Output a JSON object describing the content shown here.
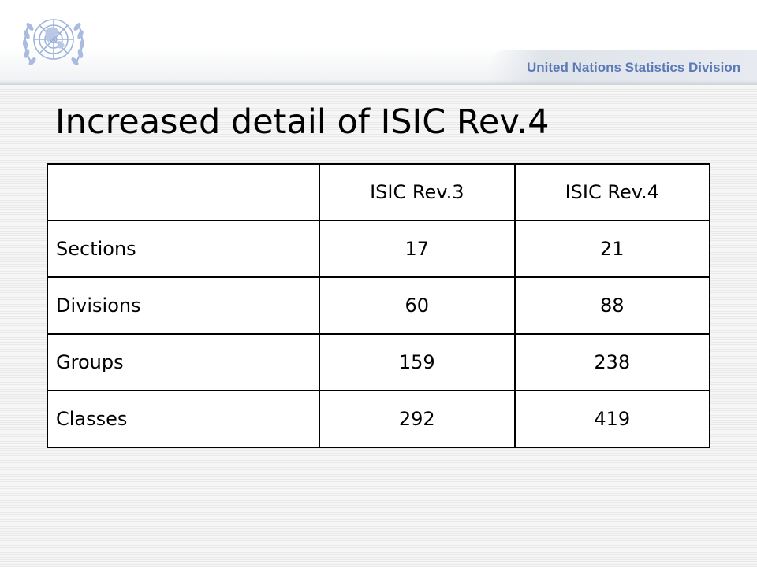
{
  "header": {
    "organization": "United Nations Statistics Division",
    "logo_icon": "un-emblem-icon",
    "brand_color": "#5b79b6"
  },
  "slide": {
    "title": "Increased detail of ISIC Rev.4"
  },
  "table": {
    "columns": [
      "",
      "ISIC Rev.3",
      "ISIC Rev.4"
    ],
    "rows": [
      {
        "label": "Sections",
        "rev3": "17",
        "rev4": "21"
      },
      {
        "label": "Divisions",
        "rev3": "60",
        "rev4": "88"
      },
      {
        "label": "Groups",
        "rev3": "159",
        "rev4": "238"
      },
      {
        "label": "Classes",
        "rev3": "292",
        "rev4": "419"
      }
    ]
  }
}
